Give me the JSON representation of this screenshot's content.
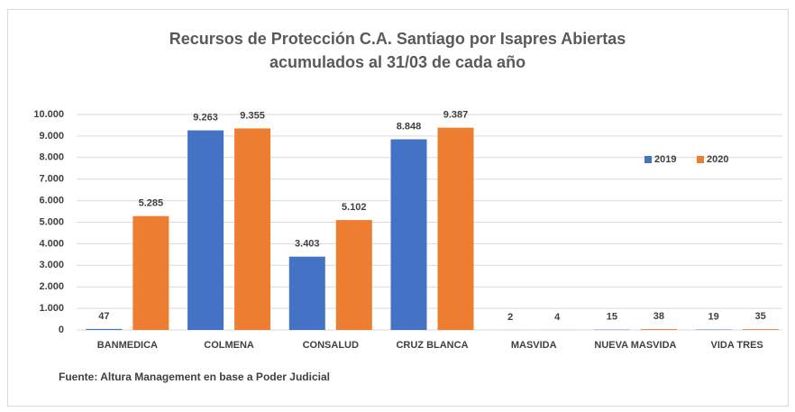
{
  "chart_data": {
    "type": "bar",
    "title": "Recursos de Protección C.A. Santiago por Isapres Abiertas",
    "subtitle": "acumulados al 31/03 de cada año",
    "categories": [
      "BANMEDICA",
      "COLMENA",
      "CONSALUD",
      "CRUZ BLANCA",
      "MASVIDA",
      "NUEVA MASVIDA",
      "VIDA TRES"
    ],
    "series": [
      {
        "name": "2019",
        "color": "#4472c4",
        "values": [
          47,
          9263,
          3403,
          8848,
          2,
          15,
          19
        ],
        "value_labels": [
          "47",
          "9.263",
          "3.403",
          "8.848",
          "2",
          "15",
          "19"
        ]
      },
      {
        "name": "2020",
        "color": "#ed7d31",
        "values": [
          5285,
          9355,
          5102,
          9387,
          4,
          38,
          35
        ],
        "value_labels": [
          "5.285",
          "9.355",
          "5.102",
          "9.387",
          "4",
          "38",
          "35"
        ]
      }
    ],
    "ylim": [
      0,
      10000
    ],
    "yticks": [
      0,
      {
        "value": 1000,
        "label": "1.000"
      },
      {
        "value": 2000,
        "label": "2.000"
      },
      {
        "value": 3000,
        "label": "3.000"
      },
      {
        "value": 4000,
        "label": "4.000"
      },
      {
        "value": 5000,
        "label": "5.000"
      },
      {
        "value": 6000,
        "label": "6.000"
      },
      {
        "value": 7000,
        "label": "7.000"
      },
      {
        "value": 8000,
        "label": "8.000"
      },
      {
        "value": 9000,
        "label": "9.000"
      },
      {
        "value": 10000,
        "label": "10.000"
      }
    ],
    "grid": true,
    "legend": "right",
    "source": "Fuente: Altura Management en base a Poder Judicial"
  }
}
